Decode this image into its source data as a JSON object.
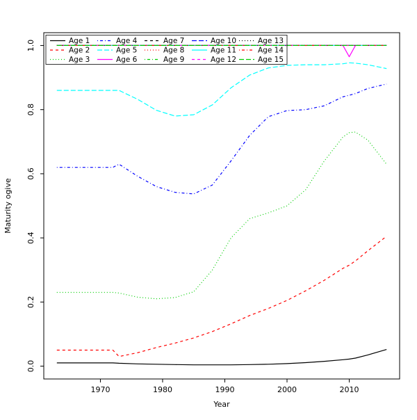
{
  "chart_data": {
    "type": "line",
    "title": "",
    "xlabel": "Year",
    "ylabel": "Maturity ogive",
    "xlim": [
      1960.9,
      2018.1
    ],
    "ylim": [
      -0.04,
      1.04
    ],
    "x_ticks": [
      1970,
      1980,
      1990,
      2000,
      2010
    ],
    "y_ticks": [
      "0.0",
      "0.2",
      "0.4",
      "0.6",
      "0.8",
      "1.0"
    ],
    "grid": "off",
    "legend": {
      "position": "top-left",
      "ncol": 5,
      "order": "column-major"
    },
    "x": [
      1963,
      1968,
      1972,
      1973,
      1976,
      1979,
      1982,
      1985,
      1988,
      1991,
      1994,
      1997,
      2000,
      2003,
      2006,
      2009,
      2010,
      2011,
      2013,
      2016
    ],
    "series": [
      {
        "name": "Age 1",
        "color": "#000000",
        "linetype": "solid",
        "values": [
          0.01,
          0.01,
          0.01,
          0.009,
          0.007,
          0.006,
          0.005,
          0.004,
          0.004,
          0.004,
          0.005,
          0.006,
          0.008,
          0.011,
          0.015,
          0.02,
          0.022,
          0.025,
          0.035,
          0.052
        ]
      },
      {
        "name": "Age 2",
        "color": "#FF0000",
        "linetype": "dashed",
        "values": [
          0.05,
          0.05,
          0.05,
          0.03,
          0.042,
          0.058,
          0.072,
          0.088,
          0.108,
          0.132,
          0.158,
          0.18,
          0.205,
          0.235,
          0.268,
          0.305,
          0.315,
          0.328,
          0.36,
          0.405
        ]
      },
      {
        "name": "Age 3",
        "color": "#00CD00",
        "linetype": "dotted",
        "values": [
          0.23,
          0.23,
          0.23,
          0.228,
          0.215,
          0.21,
          0.214,
          0.232,
          0.3,
          0.4,
          0.46,
          0.478,
          0.5,
          0.55,
          0.64,
          0.715,
          0.728,
          0.73,
          0.705,
          0.63
        ]
      },
      {
        "name": "Age 4",
        "color": "#0000FF",
        "linetype": "dotdash",
        "values": [
          0.62,
          0.62,
          0.62,
          0.63,
          0.592,
          0.56,
          0.542,
          0.537,
          0.565,
          0.64,
          0.72,
          0.778,
          0.797,
          0.8,
          0.812,
          0.84,
          0.845,
          0.85,
          0.866,
          0.88
        ]
      },
      {
        "name": "Age 5",
        "color": "#00FFFF",
        "linetype": "longdash",
        "values": [
          0.86,
          0.86,
          0.86,
          0.86,
          0.832,
          0.798,
          0.78,
          0.784,
          0.815,
          0.868,
          0.908,
          0.93,
          0.938,
          0.94,
          0.94,
          0.943,
          0.946,
          0.945,
          0.94,
          0.928
        ]
      },
      {
        "name": "Age 6",
        "color": "#FF00FF",
        "linetype": "solid",
        "values": [
          1,
          1,
          1,
          1,
          1,
          1,
          1,
          1,
          1,
          1,
          1,
          1,
          1,
          1,
          1,
          1,
          0.965,
          1,
          1,
          1
        ]
      },
      {
        "name": "Age 7",
        "color": "#000000",
        "linetype": "dashed",
        "values": [
          1,
          1,
          1,
          1,
          1,
          1,
          1,
          1,
          1,
          1,
          1,
          1,
          1,
          1,
          1,
          1,
          1,
          1,
          1,
          1
        ]
      },
      {
        "name": "Age 8",
        "color": "#FF0000",
        "linetype": "dotted",
        "values": [
          1,
          1,
          1,
          1,
          1,
          1,
          1,
          1,
          1,
          1,
          1,
          1,
          1,
          1,
          1,
          1,
          1,
          1,
          1,
          1
        ]
      },
      {
        "name": "Age 9",
        "color": "#00CD00",
        "linetype": "dotdash",
        "values": [
          1,
          1,
          1,
          1,
          1,
          1,
          1,
          1,
          1,
          1,
          1,
          1,
          1,
          1,
          1,
          1,
          1,
          1,
          1,
          1
        ]
      },
      {
        "name": "Age 10",
        "color": "#0000FF",
        "linetype": "longdash",
        "values": [
          1,
          1,
          1,
          1,
          1,
          1,
          1,
          1,
          1,
          1,
          1,
          1,
          1,
          1,
          1,
          1,
          1,
          1,
          1,
          1
        ]
      },
      {
        "name": "Age 11",
        "color": "#00FFFF",
        "linetype": "solid",
        "values": [
          1,
          1,
          1,
          1,
          1,
          1,
          1,
          1,
          1,
          1,
          1,
          1,
          1,
          1,
          1,
          1,
          1,
          1,
          1,
          1
        ]
      },
      {
        "name": "Age 12",
        "color": "#FF00FF",
        "linetype": "dashed",
        "values": [
          1,
          1,
          1,
          1,
          1,
          1,
          1,
          1,
          1,
          1,
          1,
          1,
          1,
          1,
          1,
          1,
          1,
          1,
          1,
          1
        ]
      },
      {
        "name": "Age 13",
        "color": "#000000",
        "linetype": "dotted",
        "values": [
          1,
          1,
          1,
          1,
          1,
          1,
          1,
          1,
          1,
          1,
          1,
          1,
          1,
          1,
          1,
          1,
          1,
          1,
          1,
          1
        ]
      },
      {
        "name": "Age 14",
        "color": "#FF0000",
        "linetype": "dotdash",
        "values": [
          1,
          1,
          1,
          1,
          1,
          1,
          1,
          1,
          1,
          1,
          1,
          1,
          1,
          1,
          1,
          1,
          1,
          1,
          1,
          1
        ]
      },
      {
        "name": "Age 15",
        "color": "#00CD00",
        "linetype": "longdash",
        "values": [
          1,
          1,
          1,
          1,
          1,
          1,
          1,
          1,
          1,
          1,
          1,
          1,
          1,
          1,
          1,
          1,
          1,
          1,
          1,
          1
        ]
      }
    ]
  }
}
